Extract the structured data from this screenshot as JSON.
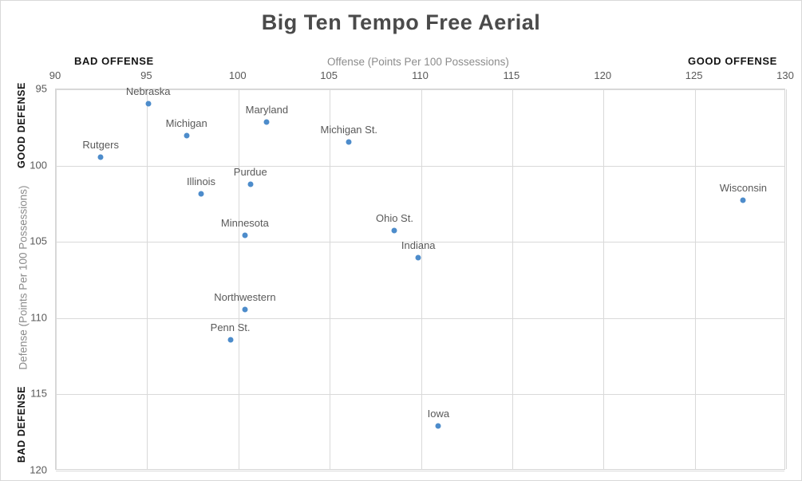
{
  "title": "Big Ten Tempo Free Aerial",
  "annotations": {
    "bad_offense": "BAD OFFENSE",
    "good_offense": "GOOD OFFENSE",
    "good_defense": "GOOD DEFENSE",
    "bad_defense": "BAD DEFENSE"
  },
  "colors": {
    "marker": "#4d8ccb",
    "grid": "#d9d9d9",
    "tick_text": "#595959",
    "axis_title_text": "#8c8c8c",
    "title_text": "#4a4a4a",
    "direction_text": "#141414",
    "background": "#ffffff"
  },
  "chart_data": {
    "type": "scatter",
    "title": "Big Ten Tempo Free Aerial",
    "xlabel": "Offense (Points Per 100 Possessions)",
    "ylabel": "Defense (Points Per 100 Possessions)",
    "xlim": [
      90,
      130
    ],
    "ylim": [
      95,
      120
    ],
    "y_axis_inverted": true,
    "grid": true,
    "legend": "none",
    "x_ticks": [
      90,
      95,
      100,
      105,
      110,
      115,
      120,
      125,
      130
    ],
    "y_ticks": [
      95,
      100,
      105,
      110,
      115,
      120
    ],
    "points": [
      {
        "label": "Rutgers",
        "x": 92.5,
        "y": 99.5
      },
      {
        "label": "Nebraska",
        "x": 95.1,
        "y": 96.0
      },
      {
        "label": "Michigan",
        "x": 97.2,
        "y": 98.1
      },
      {
        "label": "Illinois",
        "x": 98.0,
        "y": 101.9
      },
      {
        "label": "Penn St.",
        "x": 99.6,
        "y": 111.5
      },
      {
        "label": "Minnesota",
        "x": 100.4,
        "y": 104.6
      },
      {
        "label": "Northwestern",
        "x": 100.4,
        "y": 109.5
      },
      {
        "label": "Purdue",
        "x": 100.7,
        "y": 101.3
      },
      {
        "label": "Maryland",
        "x": 101.6,
        "y": 97.2
      },
      {
        "label": "Michigan St.",
        "x": 106.1,
        "y": 98.5
      },
      {
        "label": "Ohio St.",
        "x": 108.6,
        "y": 104.3
      },
      {
        "label": "Indiana",
        "x": 109.9,
        "y": 106.1
      },
      {
        "label": "Iowa",
        "x": 111.0,
        "y": 117.1
      },
      {
        "label": "Wisconsin",
        "x": 127.7,
        "y": 102.3
      }
    ]
  }
}
